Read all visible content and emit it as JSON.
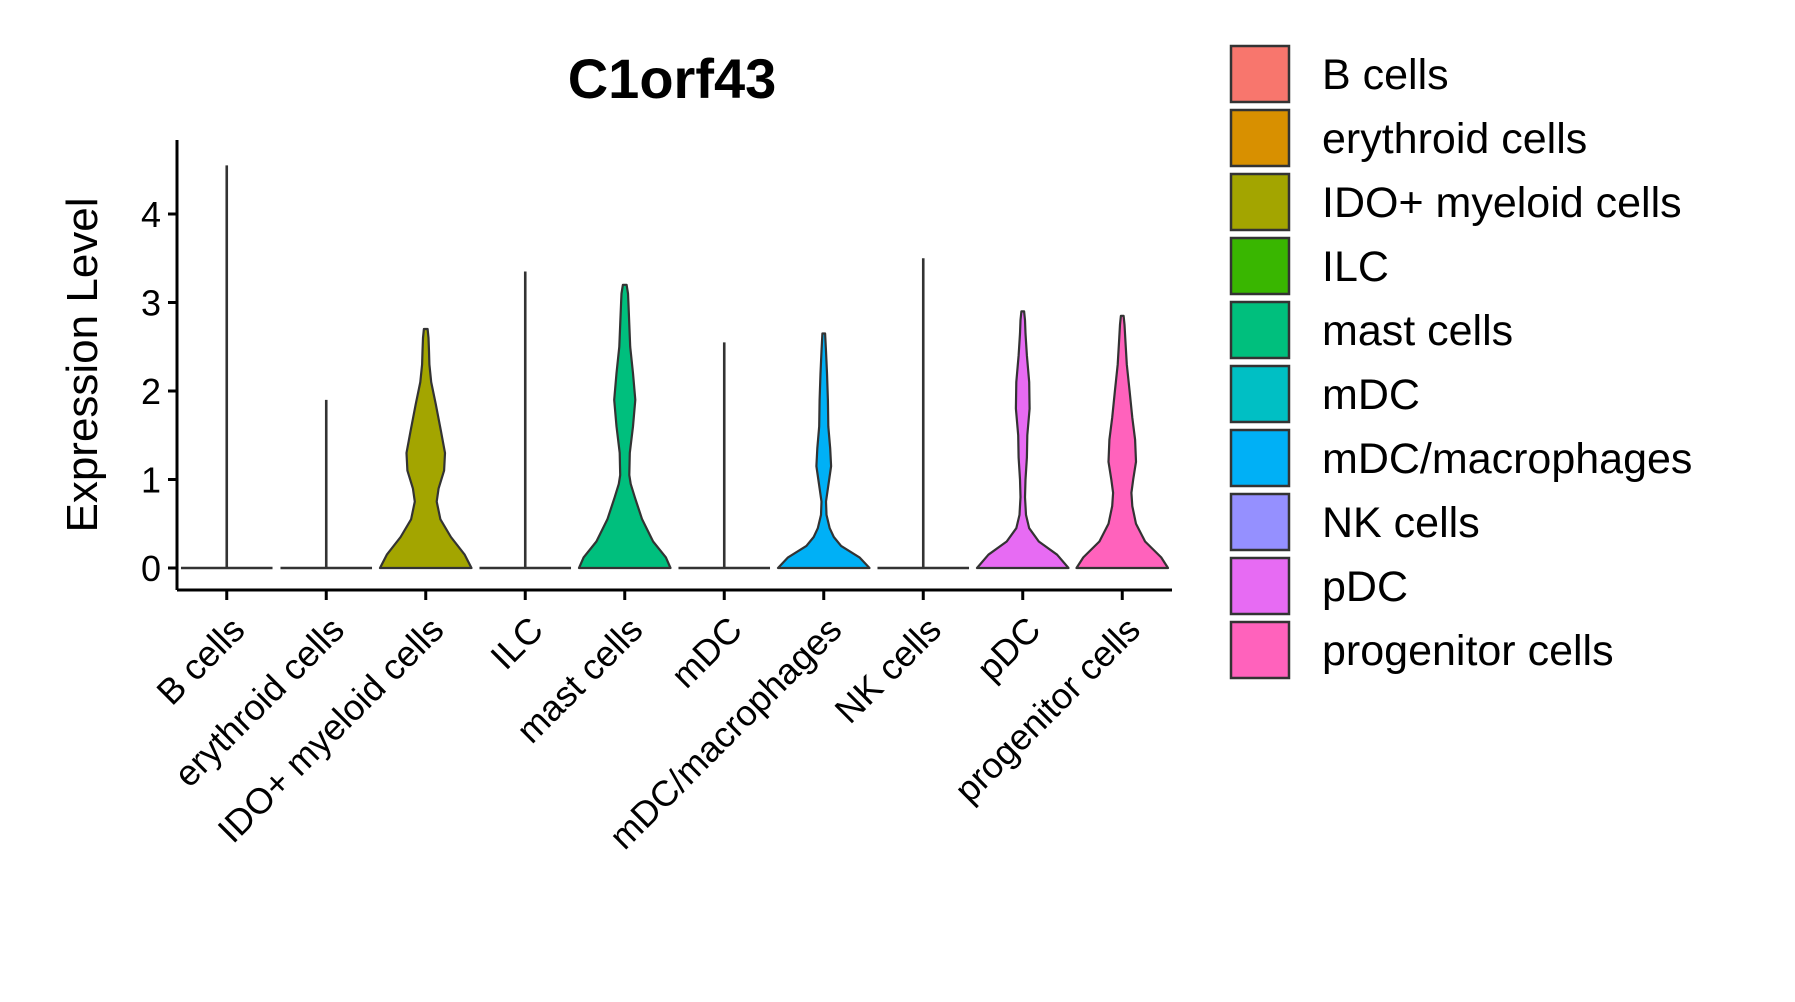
{
  "chart_data": {
    "type": "violin",
    "title": "C1orf43",
    "xlabel": "",
    "ylabel": "Expression Level",
    "ylim": [
      -0.25,
      4.85
    ],
    "yticks": [
      0,
      1,
      2,
      3,
      4
    ],
    "categories": [
      "B cells",
      "erythroid cells",
      "IDO+ myeloid cells",
      "ILC",
      "mast cells",
      "mDC",
      "mDC/macrophages",
      "NK cells",
      "pDC",
      "progenitor cells"
    ],
    "max_values": [
      4.55,
      1.9,
      2.7,
      3.35,
      3.2,
      2.55,
      2.65,
      3.5,
      2.9,
      2.85
    ],
    "colors": [
      "#F8766D",
      "#D89000",
      "#A3A500",
      "#39B600",
      "#00BF7D",
      "#00BFC4",
      "#00B0F6",
      "#9590FF",
      "#E76BF3",
      "#FF62BC"
    ],
    "densities": [
      [],
      [],
      [
        [
          0,
          1.0
        ],
        [
          0.15,
          0.85
        ],
        [
          0.35,
          0.55
        ],
        [
          0.55,
          0.32
        ],
        [
          0.75,
          0.24
        ],
        [
          0.9,
          0.28
        ],
        [
          1.1,
          0.4
        ],
        [
          1.3,
          0.42
        ],
        [
          1.55,
          0.33
        ],
        [
          1.85,
          0.22
        ],
        [
          2.1,
          0.12
        ],
        [
          2.3,
          0.08
        ],
        [
          2.45,
          0.07
        ],
        [
          2.6,
          0.06
        ],
        [
          2.7,
          0.04
        ]
      ],
      [],
      [
        [
          0,
          1.0
        ],
        [
          0.12,
          0.9
        ],
        [
          0.3,
          0.62
        ],
        [
          0.55,
          0.38
        ],
        [
          0.8,
          0.22
        ],
        [
          0.95,
          0.13
        ],
        [
          1.05,
          0.1
        ],
        [
          1.3,
          0.11
        ],
        [
          1.6,
          0.18
        ],
        [
          1.9,
          0.23
        ],
        [
          2.2,
          0.18
        ],
        [
          2.5,
          0.12
        ],
        [
          2.75,
          0.1
        ],
        [
          3.0,
          0.08
        ],
        [
          3.1,
          0.07
        ],
        [
          3.2,
          0.04
        ]
      ],
      [],
      [
        [
          0,
          1.0
        ],
        [
          0.12,
          0.78
        ],
        [
          0.25,
          0.38
        ],
        [
          0.35,
          0.22
        ],
        [
          0.45,
          0.13
        ],
        [
          0.6,
          0.06
        ],
        [
          0.75,
          0.05
        ],
        [
          0.9,
          0.09
        ],
        [
          1.15,
          0.16
        ],
        [
          1.35,
          0.14
        ],
        [
          1.6,
          0.1
        ],
        [
          1.9,
          0.09
        ],
        [
          2.2,
          0.07
        ],
        [
          2.45,
          0.05
        ],
        [
          2.65,
          0.03
        ]
      ],
      [],
      [
        [
          0,
          1.0
        ],
        [
          0.15,
          0.75
        ],
        [
          0.3,
          0.35
        ],
        [
          0.45,
          0.14
        ],
        [
          0.6,
          0.07
        ],
        [
          0.8,
          0.05
        ],
        [
          1.0,
          0.06
        ],
        [
          1.25,
          0.09
        ],
        [
          1.5,
          0.1
        ],
        [
          1.8,
          0.15
        ],
        [
          2.1,
          0.14
        ],
        [
          2.4,
          0.09
        ],
        [
          2.65,
          0.06
        ],
        [
          2.8,
          0.05
        ],
        [
          2.9,
          0.03
        ]
      ],
      [
        [
          0,
          1.0
        ],
        [
          0.12,
          0.85
        ],
        [
          0.3,
          0.5
        ],
        [
          0.5,
          0.3
        ],
        [
          0.7,
          0.22
        ],
        [
          0.85,
          0.2
        ],
        [
          1.0,
          0.24
        ],
        [
          1.2,
          0.3
        ],
        [
          1.45,
          0.28
        ],
        [
          1.7,
          0.22
        ],
        [
          2.0,
          0.16
        ],
        [
          2.3,
          0.1
        ],
        [
          2.55,
          0.07
        ],
        [
          2.75,
          0.05
        ],
        [
          2.85,
          0.03
        ]
      ]
    ]
  }
}
